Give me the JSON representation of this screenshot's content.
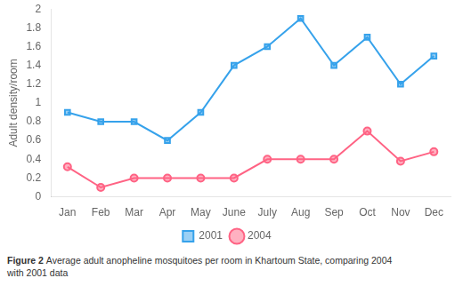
{
  "chart_data": {
    "type": "line",
    "categories": [
      "Jan",
      "Feb",
      "Mar",
      "Apr",
      "May",
      "June",
      "July",
      "Aug",
      "Sep",
      "Oct",
      "Nov",
      "Dec"
    ],
    "series": [
      {
        "name": "2001",
        "marker": "square",
        "values": [
          0.9,
          0.8,
          0.8,
          0.6,
          0.9,
          1.4,
          1.6,
          1.9,
          1.4,
          1.7,
          1.2,
          1.5
        ]
      },
      {
        "name": "2004",
        "marker": "circle",
        "values": [
          0.32,
          0.1,
          0.2,
          0.2,
          0.2,
          0.2,
          0.4,
          0.4,
          0.4,
          0.7,
          0.38,
          0.48
        ]
      }
    ],
    "ylabel": "Adult density/room",
    "ylim": [
      0,
      2.0
    ],
    "yticks": [
      0,
      0.2,
      0.4,
      0.6,
      0.8,
      1,
      1.2,
      1.4,
      1.6,
      1.8,
      2
    ],
    "grid": false,
    "legend": "bottom",
    "annotations": [
      "Figure 2",
      "Average adult anopheline mosquitoes per room in Khartoum State, comparing 2004",
      "with 2001 data"
    ]
  }
}
